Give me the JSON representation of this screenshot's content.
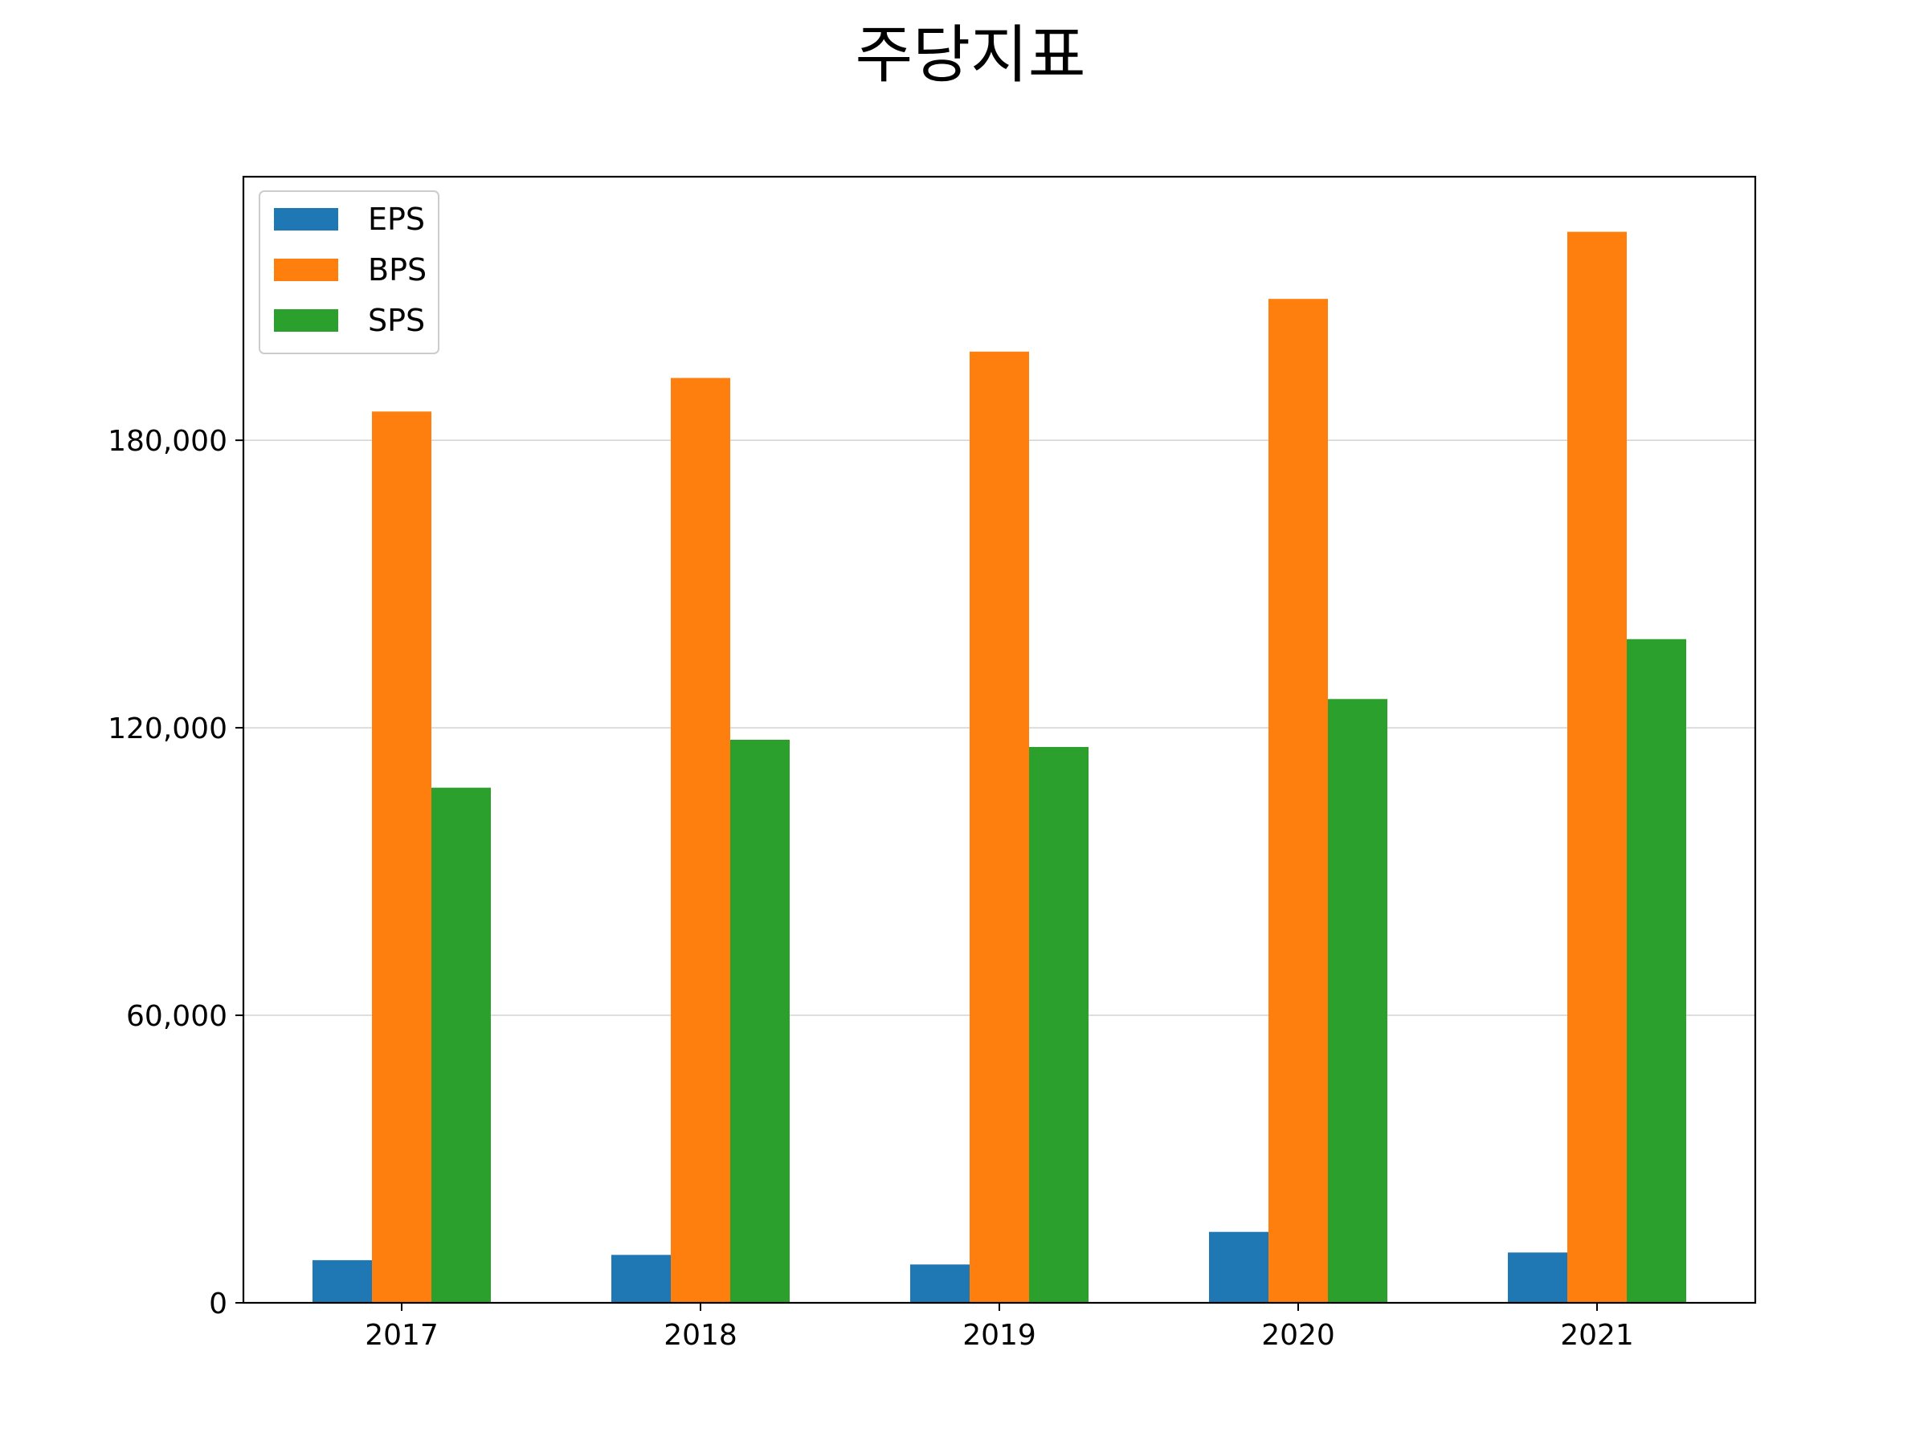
{
  "chart_data": {
    "type": "bar",
    "title": "주당지표",
    "xlabel": "",
    "ylabel": "",
    "categories": [
      "2017",
      "2018",
      "2019",
      "2020",
      "2021"
    ],
    "series": [
      {
        "name": "EPS",
        "color": "#1f77b4",
        "values": [
          8900,
          10000,
          8000,
          14800,
          10500
        ]
      },
      {
        "name": "BPS",
        "color": "#ff7f0e",
        "values": [
          186000,
          193000,
          198500,
          209500,
          223500
        ]
      },
      {
        "name": "SPS",
        "color": "#2ca02c",
        "values": [
          107500,
          117500,
          116000,
          126000,
          138500
        ]
      }
    ],
    "ylim": [
      0,
      235000
    ],
    "yticks": [
      0,
      60000,
      120000,
      180000
    ],
    "ytick_labels": [
      "0",
      "60,000",
      "120,000",
      "180,000"
    ],
    "grid": "horizontal",
    "legend_position": "top-left"
  }
}
